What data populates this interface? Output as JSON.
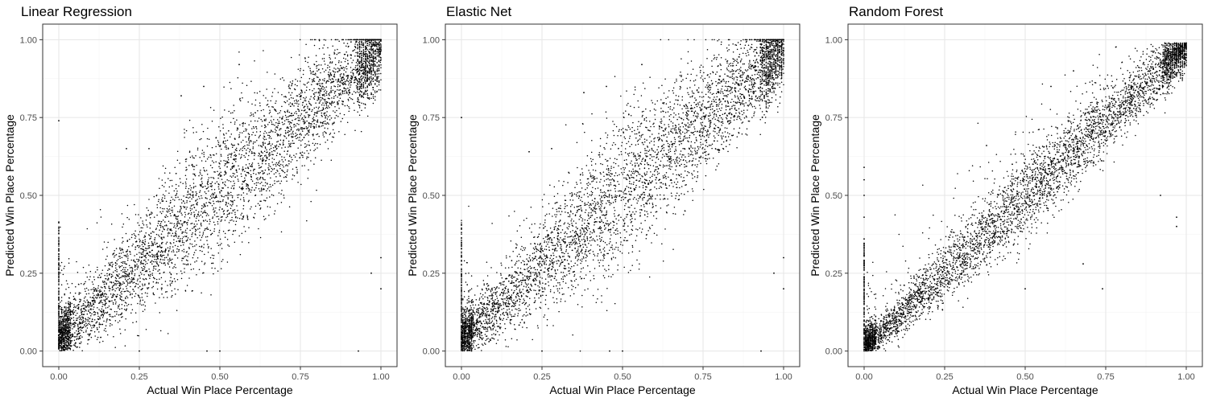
{
  "chart_data": [
    {
      "type": "scatter",
      "title": "Linear Regression",
      "xlabel": "Actual Win Place Percentage",
      "ylabel": "Predicted Win Place Percentage",
      "xlim": [
        0,
        1
      ],
      "ylim": [
        0,
        1
      ],
      "xticks": [
        "0.00",
        "0.25",
        "0.50",
        "0.75",
        "1.00"
      ],
      "yticks": [
        "0.00",
        "0.25",
        "0.50",
        "0.75",
        "1.00"
      ],
      "grid": true,
      "clipped_at_one": true,
      "trend": {
        "intercept": 0.04,
        "slope": 0.93
      },
      "noise_sd": 0.075,
      "outliers": [
        [
          0.0,
          0.74
        ],
        [
          0.25,
          0.0
        ],
        [
          0.46,
          0.0
        ],
        [
          0.5,
          0.0
        ],
        [
          0.93,
          0.0
        ],
        [
          1.0,
          0.2
        ],
        [
          1.0,
          0.3
        ],
        [
          0.97,
          0.25
        ],
        [
          0.38,
          0.82
        ],
        [
          0.45,
          0.85
        ],
        [
          0.56,
          0.92
        ],
        [
          0.28,
          0.65
        ],
        [
          0.21,
          0.65
        ]
      ]
    },
    {
      "type": "scatter",
      "title": "Elastic Net",
      "xlabel": "Actual Win Place Percentage",
      "ylabel": "Predicted Win Place Percentage",
      "xlim": [
        0,
        1
      ],
      "ylim": [
        0,
        1
      ],
      "xticks": [
        "0.00",
        "0.25",
        "0.50",
        "0.75",
        "1.00"
      ],
      "yticks": [
        "0.00",
        "0.25",
        "0.50",
        "0.75",
        "1.00"
      ],
      "grid": true,
      "clipped_at_one": true,
      "trend": {
        "intercept": 0.04,
        "slope": 0.93
      },
      "noise_sd": 0.075,
      "outliers": [
        [
          0.0,
          0.75
        ],
        [
          0.25,
          0.0
        ],
        [
          0.46,
          0.0
        ],
        [
          0.5,
          0.0
        ],
        [
          0.93,
          0.0
        ],
        [
          1.0,
          0.2
        ],
        [
          1.0,
          0.3
        ],
        [
          0.97,
          0.25
        ],
        [
          0.38,
          0.83
        ],
        [
          0.45,
          0.85
        ],
        [
          0.56,
          0.92
        ],
        [
          0.28,
          0.65
        ],
        [
          0.21,
          0.64
        ]
      ]
    },
    {
      "type": "scatter",
      "title": "Random Forest",
      "xlabel": "Actual Win Place Percentage",
      "ylabel": "Predicted Win Place Percentage",
      "xlim": [
        0,
        1
      ],
      "ylim": [
        0,
        1
      ],
      "xticks": [
        "0.00",
        "0.25",
        "0.50",
        "0.75",
        "1.00"
      ],
      "yticks": [
        "0.00",
        "0.25",
        "0.50",
        "0.75",
        "1.00"
      ],
      "grid": true,
      "clipped_at_one": false,
      "trend": {
        "intercept": 0.01,
        "slope": 0.97
      },
      "noise_sd": 0.045,
      "outliers": [
        [
          0.0,
          0.59
        ],
        [
          0.0,
          0.55
        ],
        [
          0.0,
          0.5
        ],
        [
          0.0,
          0.43
        ],
        [
          0.0,
          0.36
        ],
        [
          0.5,
          0.2
        ],
        [
          0.68,
          0.28
        ],
        [
          0.74,
          0.2
        ],
        [
          0.97,
          0.43
        ],
        [
          0.97,
          0.4
        ],
        [
          0.92,
          0.5
        ],
        [
          0.38,
          0.66
        ],
        [
          0.46,
          0.6
        ],
        [
          0.58,
          0.85
        ],
        [
          0.65,
          0.9
        ]
      ]
    }
  ]
}
